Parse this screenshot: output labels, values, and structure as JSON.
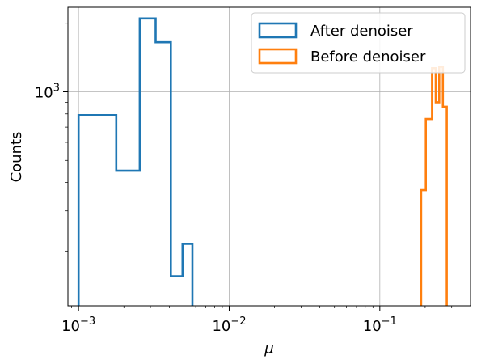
{
  "chart_data": {
    "type": "histogram",
    "title": "",
    "xlabel": "μ",
    "ylabel": "Counts",
    "xscale": "log",
    "yscale": "log",
    "xlim": [
      0.00085,
      0.4
    ],
    "ylim": [
      115,
      2350
    ],
    "grid": true,
    "legend_position": "top-right",
    "x_ticks": [
      {
        "value": 0.001,
        "mantissa": "10",
        "exponent": "−3"
      },
      {
        "value": 0.01,
        "mantissa": "10",
        "exponent": "−2"
      },
      {
        "value": 0.1,
        "mantissa": "10",
        "exponent": "−1"
      }
    ],
    "y_ticks": [
      {
        "value": 1000,
        "mantissa": "10",
        "exponent": "3"
      }
    ],
    "series": [
      {
        "name": "After denoiser",
        "color": "#1f77b4",
        "bin_edges": [
          0.001,
          0.00178,
          0.00255,
          0.00325,
          0.0041,
          0.0049,
          0.0057
        ],
        "counts": [
          790,
          450,
          2100,
          1650,
          155,
          215
        ]
      },
      {
        "name": "Before denoiser",
        "color": "#ff7f0e",
        "bin_edges": [
          0.188,
          0.202,
          0.222,
          0.235,
          0.248,
          0.262,
          0.278
        ],
        "counts": [
          370,
          760,
          1270,
          900,
          1290,
          860
        ]
      }
    ]
  }
}
